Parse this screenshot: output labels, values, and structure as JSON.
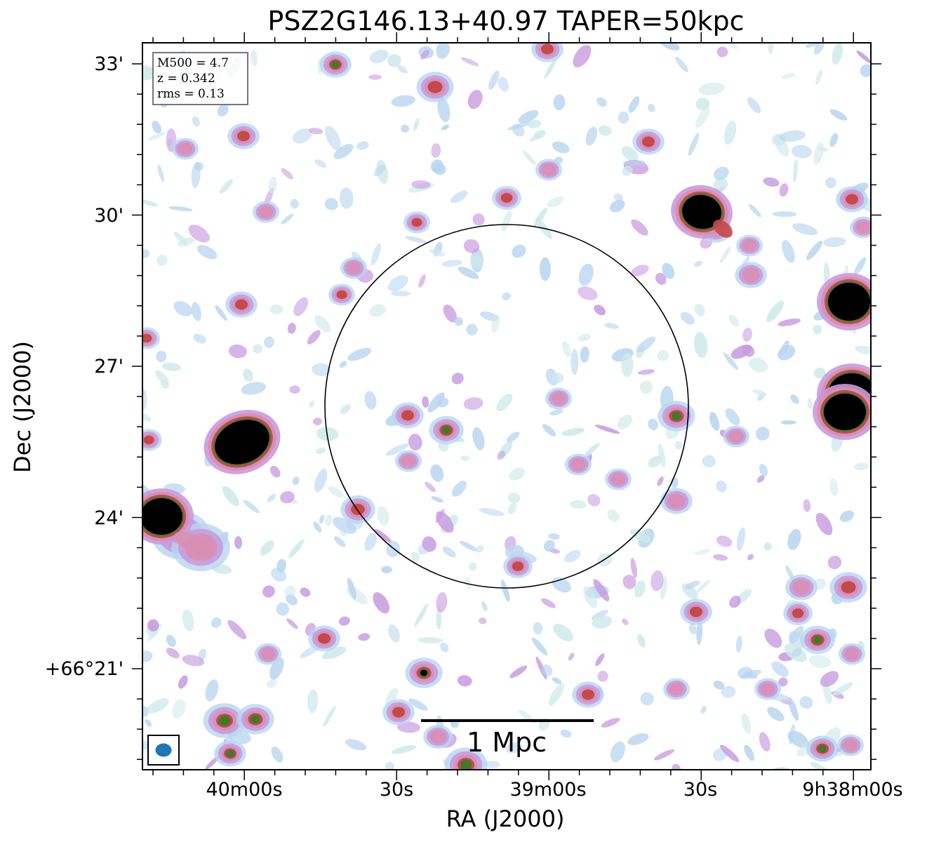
{
  "title": "PSZ2G146.13+40.97 TAPER=50kpc",
  "axes": {
    "xlabel": "RA (J2000)",
    "ylabel": "Dec (J2000)",
    "xticks": [
      "40m00s",
      "30s",
      "39m00s",
      "30s",
      "9h38m00s"
    ],
    "yticks": [
      "33'",
      "30'",
      "27'",
      "24'",
      "+66°21'"
    ]
  },
  "info": {
    "m500": "M500 = 4.7",
    "z": "z = 0.342",
    "rms": "rms = 0.13"
  },
  "scalebar": {
    "label": "1 Mpc"
  },
  "beam": {
    "color": "#1f77b4"
  },
  "colors": {
    "faint": "#b9d6ef",
    "faint_cyan": "#cfeaea",
    "lavender": "#c79be0",
    "pink": "#d98fb4",
    "red": "#c24a4a",
    "green": "#3f7a2a",
    "core": "#000000"
  }
}
